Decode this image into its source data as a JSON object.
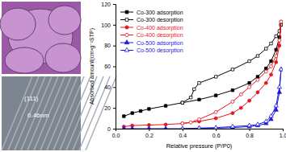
{
  "chart_data": {
    "type": "line",
    "x_label": "Relative pressure (P/P0)",
    "y_label": "Absorbed amount(cm³g⁻¹STP)",
    "annotations": [
      "(111)",
      "0.46nm"
    ],
    "xlim": [
      0,
      1
    ],
    "xticks": [
      {
        "value": 0,
        "label": "0.0"
      },
      {
        "value": 0.2,
        "label": "0.2"
      },
      {
        "value": 0.4,
        "label": "0.4"
      },
      {
        "value": 0.6,
        "label": "0.6"
      },
      {
        "value": 0.8,
        "label": "0.8"
      },
      {
        "value": 1,
        "label": "1.0"
      }
    ],
    "ylim": [
      0,
      120
    ],
    "yticks": [
      0,
      20,
      40,
      60,
      80,
      100,
      120
    ],
    "legend": "upper left",
    "series": [
      {
        "name": "Co-300 adsorption",
        "color": "#000000",
        "marker": "square",
        "x": [
          0.05,
          0.1,
          0.15,
          0.2,
          0.3,
          0.4,
          0.5,
          0.6,
          0.7,
          0.8,
          0.85,
          0.9,
          0.93,
          0.96,
          0.98,
          0.99
        ],
        "values": [
          12,
          15,
          17,
          19,
          22,
          25,
          28,
          32,
          37,
          44,
          50,
          58,
          65,
          76,
          88,
          100
        ]
      },
      {
        "name": "Co-300 desorption",
        "color": "#000000",
        "marker": "square-open",
        "x": [
          0.99,
          0.98,
          0.96,
          0.93,
          0.9,
          0.85,
          0.8,
          0.7,
          0.6,
          0.5,
          0.47,
          0.45,
          0.4
        ],
        "values": [
          100,
          94,
          89,
          82,
          77,
          70,
          65,
          57,
          50,
          44,
          38,
          30,
          25
        ]
      },
      {
        "name": "Co-400 adsorption",
        "color": "#e8141e",
        "marker": "circle",
        "x": [
          0.05,
          0.1,
          0.2,
          0.3,
          0.4,
          0.5,
          0.6,
          0.7,
          0.75,
          0.8,
          0.85,
          0.9,
          0.93,
          0.96,
          0.98,
          0.99
        ],
        "values": [
          2,
          3,
          3.5,
          4,
          5,
          7,
          10,
          15,
          20,
          27,
          35,
          44,
          52,
          64,
          80,
          103
        ]
      },
      {
        "name": "Co-400 desorption",
        "color": "#e8141e",
        "marker": "circle-open",
        "x": [
          0.99,
          0.98,
          0.96,
          0.93,
          0.9,
          0.85,
          0.8,
          0.75,
          0.7,
          0.6,
          0.5,
          0.45,
          0.4
        ],
        "values": [
          103,
          85,
          70,
          60,
          55,
          47,
          40,
          33,
          26,
          16,
          9,
          6,
          5
        ]
      },
      {
        "name": "Co-500 adsorption",
        "color": "#1a1adc",
        "marker": "triangle",
        "x": [
          0.05,
          0.1,
          0.2,
          0.3,
          0.4,
          0.5,
          0.6,
          0.7,
          0.8,
          0.85,
          0.9,
          0.93,
          0.96,
          0.98,
          0.99
        ],
        "values": [
          0,
          0,
          0,
          0,
          0,
          0.5,
          0.5,
          1,
          2,
          3,
          5,
          9,
          18,
          35,
          57
        ]
      },
      {
        "name": "Co-500 desorption",
        "color": "#1a1adc",
        "marker": "triangle-open",
        "x": [
          0.99,
          0.98,
          0.96,
          0.93,
          0.9,
          0.85,
          0.8,
          0.7,
          0.6,
          0.5,
          0.4
        ],
        "values": [
          57,
          40,
          22,
          12,
          7,
          4,
          3,
          2,
          1,
          0.5,
          0
        ]
      }
    ]
  }
}
